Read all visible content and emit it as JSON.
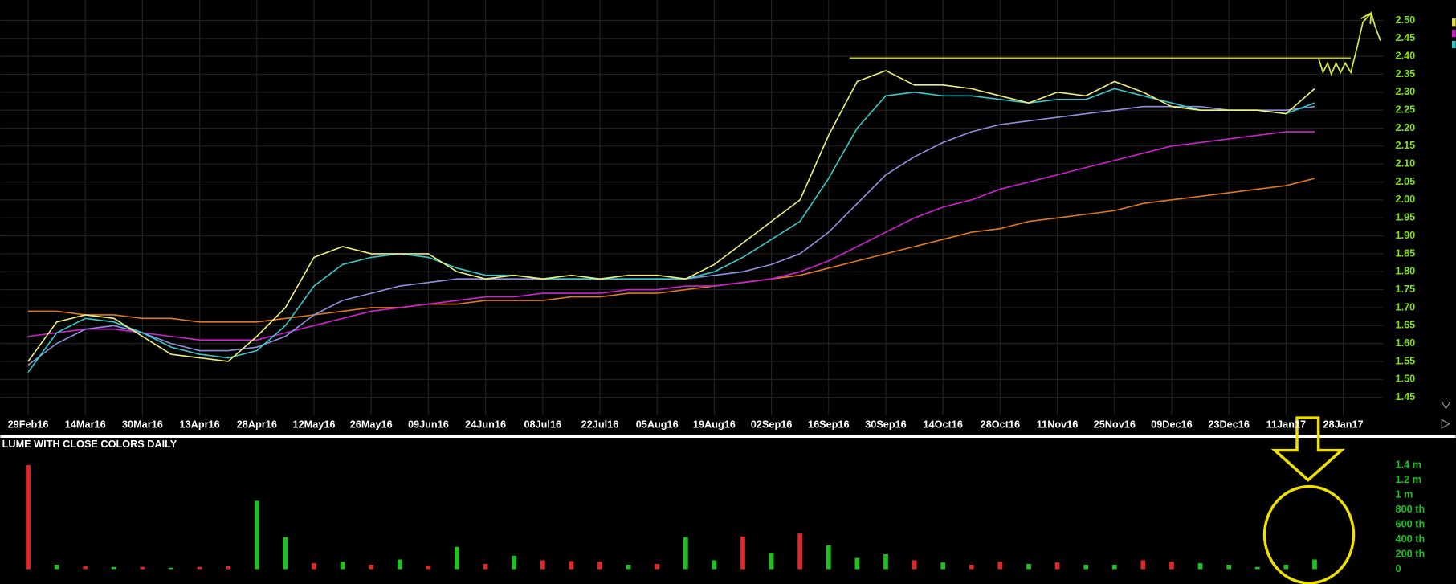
{
  "chart_data": [
    {
      "type": "line",
      "categories": [
        "29Feb16",
        null,
        "14Mar16",
        null,
        "30Mar16",
        null,
        "13Apr16",
        null,
        "28Apr16",
        null,
        "12May16",
        null,
        "26May16",
        null,
        "09Jun16",
        null,
        "24Jun16",
        null,
        "08Jul16",
        null,
        "22Jul16",
        null,
        "05Aug16",
        null,
        "19Aug16",
        null,
        "02Sep16",
        null,
        "16Sep16",
        null,
        "30Sep16",
        null,
        "14Oct16",
        null,
        "28Oct16",
        null,
        "11Nov16",
        null,
        "25Nov16",
        null,
        "09Dec16",
        null,
        "23Dec16",
        null,
        "11Jan17",
        null,
        "28Jan17"
      ],
      "series": [
        {
          "color": "#eef07a",
          "values": [
            1.55,
            1.66,
            1.68,
            1.67,
            1.62,
            1.57,
            1.56,
            1.55,
            1.62,
            1.7,
            1.84,
            1.87,
            1.85,
            1.85,
            1.85,
            1.8,
            1.78,
            1.79,
            1.78,
            1.79,
            1.78,
            1.79,
            1.79,
            1.78,
            1.82,
            1.88,
            1.94,
            2.0,
            2.18,
            2.33,
            2.36,
            2.32,
            2.32,
            2.31,
            2.29,
            2.27,
            2.3,
            2.29,
            2.33,
            2.3,
            2.26,
            2.25,
            2.25,
            2.25,
            2.24,
            2.31,
            null
          ]
        },
        {
          "color": "#38c8c8",
          "values": [
            1.52,
            1.63,
            1.67,
            1.66,
            1.63,
            1.59,
            1.57,
            1.56,
            1.58,
            1.65,
            1.76,
            1.82,
            1.84,
            1.85,
            1.84,
            1.81,
            1.79,
            1.79,
            1.78,
            1.78,
            1.78,
            1.78,
            1.78,
            1.78,
            1.8,
            1.84,
            1.89,
            1.94,
            2.06,
            2.2,
            2.29,
            2.3,
            2.29,
            2.29,
            2.28,
            2.27,
            2.28,
            2.28,
            2.31,
            2.29,
            2.27,
            2.25,
            2.25,
            2.25,
            2.24,
            2.27,
            null
          ]
        },
        {
          "color": "#9090e0",
          "values": [
            1.54,
            1.6,
            1.64,
            1.65,
            1.63,
            1.6,
            1.58,
            1.58,
            1.59,
            1.62,
            1.68,
            1.72,
            1.74,
            1.76,
            1.77,
            1.78,
            1.78,
            1.78,
            1.78,
            1.78,
            1.78,
            1.78,
            1.78,
            1.78,
            1.79,
            1.8,
            1.82,
            1.85,
            1.91,
            1.99,
            2.07,
            2.12,
            2.16,
            2.19,
            2.21,
            2.22,
            2.23,
            2.24,
            2.25,
            2.26,
            2.26,
            2.26,
            2.25,
            2.25,
            2.25,
            2.26,
            null
          ]
        },
        {
          "color": "#d020d0",
          "values": [
            1.62,
            1.63,
            1.64,
            1.64,
            1.63,
            1.62,
            1.61,
            1.61,
            1.61,
            1.63,
            1.65,
            1.67,
            1.69,
            1.7,
            1.71,
            1.72,
            1.73,
            1.73,
            1.74,
            1.74,
            1.74,
            1.75,
            1.75,
            1.76,
            1.76,
            1.77,
            1.78,
            1.8,
            1.83,
            1.87,
            1.91,
            1.95,
            1.98,
            2.0,
            2.03,
            2.05,
            2.07,
            2.09,
            2.11,
            2.13,
            2.15,
            2.16,
            2.17,
            2.18,
            2.19,
            2.19,
            null
          ]
        },
        {
          "color": "#e07820",
          "values": [
            1.69,
            1.69,
            1.68,
            1.68,
            1.67,
            1.67,
            1.66,
            1.66,
            1.66,
            1.67,
            1.68,
            1.69,
            1.7,
            1.7,
            1.71,
            1.71,
            1.72,
            1.72,
            1.72,
            1.73,
            1.73,
            1.74,
            1.74,
            1.75,
            1.76,
            1.77,
            1.78,
            1.79,
            1.81,
            1.83,
            1.85,
            1.87,
            1.89,
            1.91,
            1.92,
            1.94,
            1.95,
            1.96,
            1.97,
            1.99,
            2.0,
            2.01,
            2.02,
            2.03,
            2.04,
            2.06,
            null
          ]
        }
      ],
      "reference_line": {
        "value": 2.395,
        "color": "#c8c820"
      },
      "ylim": [
        1.42,
        2.53
      ],
      "yticks": [
        1.45,
        {
          "value": 1.5,
          "label": "1.50"
        },
        1.55,
        {
          "value": 1.6,
          "label": "1.60"
        },
        1.65,
        {
          "value": 1.7,
          "label": "1.70"
        },
        1.75,
        {
          "value": 1.8,
          "label": "1.80"
        },
        1.85,
        {
          "value": 1.9,
          "label": "1.90"
        },
        1.95,
        {
          "value": 2,
          "label": "2.00"
        },
        2.05,
        {
          "value": 2.1,
          "label": "2.10"
        },
        2.15,
        {
          "value": 2.2,
          "label": "2.20"
        },
        2.25,
        {
          "value": 2.3,
          "label": "2.30"
        },
        2.35,
        {
          "value": 2.4,
          "label": "2.40"
        },
        2.45,
        {
          "value": 2.5,
          "label": "2.50"
        }
      ],
      "grid": true
    },
    {
      "type": "bar",
      "title": "LUME WITH CLOSE COLORS DAILY",
      "values": [
        1400000,
        60000,
        40000,
        30000,
        30000,
        20000,
        30000,
        40000,
        920000,
        430000,
        80000,
        100000,
        60000,
        130000,
        50000,
        300000,
        70000,
        180000,
        120000,
        110000,
        100000,
        60000,
        70000,
        430000,
        120000,
        440000,
        220000,
        480000,
        320000,
        150000,
        200000,
        120000,
        90000,
        60000,
        100000,
        70000,
        90000,
        60000,
        60000,
        120000,
        100000,
        80000,
        60000,
        30000,
        60000,
        130000,
        null
      ],
      "colors": [
        "#e02828",
        "#20c020",
        "#e02828",
        "#20c020",
        "#e02828",
        "#20c020",
        "#e02828",
        "#e02828",
        "#20c020",
        "#20c020",
        "#e02828",
        "#20c020",
        "#e02828",
        "#20c020",
        "#e02828",
        "#20c020",
        "#e02828",
        "#20c020",
        "#e02828",
        "#e02828",
        "#e02828",
        "#20c020",
        "#e02828",
        "#20c020",
        "#20c020",
        "#e02828",
        "#20c020",
        "#e02828",
        "#20c020",
        "#20c020",
        "#20c020",
        "#e02828",
        "#20c020",
        "#e02828",
        "#e02828",
        "#20c020",
        "#e02828",
        "#20c020",
        "#20c020",
        "#e02828",
        "#e02828",
        "#20c020",
        "#20c020",
        "#20c020",
        "#20c020",
        "#20c020",
        null
      ],
      "ylim": [
        0,
        1450000
      ],
      "yticks": [
        0,
        {
          "value": 200000,
          "label": "200 th"
        },
        {
          "value": 400000,
          "label": "400 th"
        },
        {
          "value": 600000,
          "label": "600 th"
        },
        {
          "value": 800000,
          "label": "800 th"
        },
        {
          "value": 1000000,
          "label": "1 m"
        },
        {
          "value": 1200000,
          "label": "1.2 m"
        },
        {
          "value": 1400000,
          "label": "1.4 m"
        }
      ]
    }
  ]
}
